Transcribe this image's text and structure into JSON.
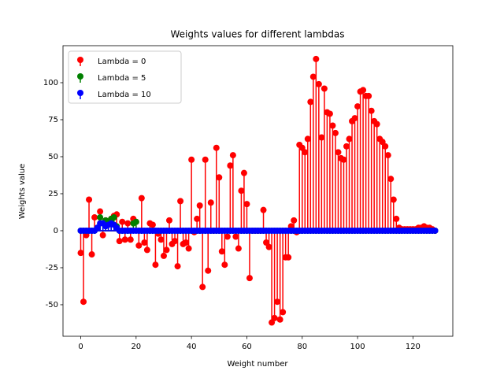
{
  "chart_data": {
    "type": "stem",
    "title": "Weights values for different lambdas",
    "x_label": "Weight number",
    "y_label": "Weights value",
    "x": [
      0,
      1,
      2,
      3,
      4,
      5,
      6,
      7,
      8,
      9,
      10,
      11,
      12,
      13,
      14,
      15,
      16,
      17,
      18,
      19,
      20,
      21,
      22,
      23,
      24,
      25,
      26,
      27,
      28,
      29,
      30,
      31,
      32,
      33,
      34,
      35,
      36,
      37,
      38,
      39,
      40,
      41,
      42,
      43,
      44,
      45,
      46,
      47,
      48,
      49,
      50,
      51,
      52,
      53,
      54,
      55,
      56,
      57,
      58,
      59,
      60,
      61,
      62,
      63,
      64,
      65,
      66,
      67,
      68,
      69,
      70,
      71,
      72,
      73,
      74,
      75,
      76,
      77,
      78,
      79,
      80,
      81,
      82,
      83,
      84,
      85,
      86,
      87,
      88,
      89,
      90,
      91,
      92,
      93,
      94,
      95,
      96,
      97,
      98,
      99,
      100,
      101,
      102,
      103,
      104,
      105,
      106,
      107,
      108,
      109,
      110,
      111,
      112,
      113,
      114,
      115,
      116,
      117,
      118,
      119,
      120,
      121,
      122,
      123,
      124,
      125,
      126,
      127,
      128
    ],
    "series": [
      {
        "name": "Lambda = 0",
        "color": "#ff0000",
        "values": [
          -15,
          -48,
          -3,
          21,
          -16,
          9,
          2,
          13,
          -3,
          7,
          5,
          8,
          10,
          11,
          -7,
          6,
          -6,
          5,
          -6,
          8,
          6,
          -10,
          22,
          -8,
          -13,
          5,
          4,
          -23,
          -2,
          -6,
          -17,
          -13,
          7,
          -9,
          -7,
          -24,
          20,
          -9,
          -8,
          -12,
          48,
          -1,
          8,
          17,
          -38,
          48,
          -27,
          19,
          0,
          56,
          36,
          -14,
          -23,
          -4,
          44,
          51,
          -4,
          -12,
          27,
          39,
          18,
          -32,
          0,
          0,
          0,
          0,
          14,
          -8,
          -11,
          -62,
          -59,
          -48,
          -60,
          -55,
          -18,
          -18,
          3,
          7,
          -1,
          58,
          56,
          53,
          62,
          87,
          104,
          116,
          99,
          63,
          96,
          80,
          79,
          71,
          66,
          53,
          49,
          48,
          57,
          62,
          74,
          76,
          84,
          94,
          95,
          91,
          91,
          81,
          74,
          72,
          62,
          60,
          57,
          51,
          35,
          21,
          8,
          2,
          1,
          1,
          1,
          1,
          1,
          1,
          2,
          2,
          3,
          2,
          2,
          1,
          0
        ]
      },
      {
        "name": "Lambda = 5",
        "color": "#008000",
        "values": [
          0,
          0,
          0,
          0,
          0,
          0,
          2,
          9,
          5,
          7,
          6,
          8,
          9,
          3,
          0,
          0,
          0,
          0,
          0,
          5,
          6,
          0,
          0,
          0,
          0,
          0,
          0,
          0,
          0,
          0,
          0,
          0,
          0,
          0,
          0,
          0,
          0,
          0,
          0,
          0,
          0,
          0,
          0,
          0,
          0,
          0,
          0,
          0,
          0,
          0,
          0,
          0,
          0,
          0,
          0,
          0,
          0,
          0,
          0,
          0,
          0,
          0,
          0,
          0,
          0,
          0,
          0,
          0,
          0,
          0,
          0,
          0,
          0,
          0,
          0,
          0,
          0,
          0,
          0,
          0,
          0,
          0,
          0,
          0,
          0,
          0,
          0,
          0,
          0,
          0,
          0,
          0,
          0,
          0,
          0,
          0,
          0,
          0,
          0,
          0,
          0,
          0,
          0,
          0,
          0,
          0,
          0,
          0,
          0,
          0,
          0,
          0,
          0,
          0,
          0,
          0,
          0,
          0,
          0,
          0,
          0,
          0,
          0,
          0,
          0,
          0,
          0,
          0,
          0
        ]
      },
      {
        "name": "Lambda = 10",
        "color": "#0000ff",
        "values": [
          0,
          0,
          0,
          0,
          0,
          0,
          2,
          5,
          5,
          3,
          4,
          5,
          4,
          2,
          0,
          0,
          0,
          0,
          0,
          0,
          0,
          0,
          0,
          0,
          0,
          0,
          0,
          0,
          0,
          0,
          0,
          0,
          0,
          0,
          0,
          0,
          0,
          0,
          0,
          0,
          0,
          0,
          0,
          0,
          0,
          0,
          0,
          0,
          0,
          0,
          0,
          0,
          0,
          0,
          0,
          0,
          0,
          0,
          0,
          0,
          0,
          0,
          0,
          0,
          0,
          0,
          0,
          0,
          0,
          0,
          0,
          0,
          0,
          0,
          0,
          0,
          0,
          0,
          0,
          0,
          0,
          0,
          0,
          0,
          0,
          0,
          0,
          0,
          0,
          0,
          0,
          0,
          0,
          0,
          0,
          0,
          0,
          0,
          0,
          0,
          0,
          0,
          0,
          0,
          0,
          0,
          0,
          0,
          0,
          0,
          0,
          0,
          0,
          0,
          0,
          0,
          0,
          0,
          0,
          0,
          0,
          0,
          0,
          0,
          0,
          0,
          0,
          0,
          0
        ]
      }
    ],
    "xlim": [
      -6.4,
      134.4
    ],
    "ylim": [
      -71.3,
      125
    ],
    "xticks": [
      0,
      20,
      40,
      60,
      80,
      100,
      120
    ],
    "yticks": [
      -50,
      -25,
      0,
      25,
      50,
      75,
      100
    ],
    "legend": "upper left"
  }
}
